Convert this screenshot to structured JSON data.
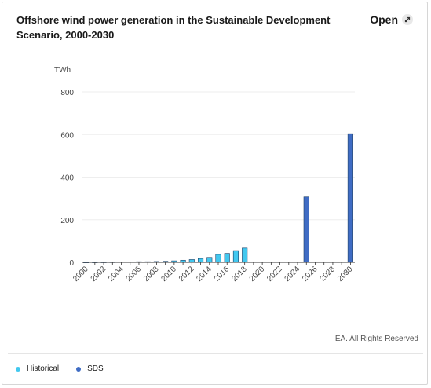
{
  "header": {
    "title": "Offshore wind power generation in the Sustainable Development Scenario, 2000-2030",
    "open_label": "Open"
  },
  "footer": {
    "credit": "IEA. All Rights Reserved"
  },
  "colors": {
    "historical": "#42c8ef",
    "sds": "#3f6cc4",
    "grid": "#eeeeee",
    "axis": "#333333"
  },
  "chart_data": {
    "type": "bar",
    "ylabel": "TWh",
    "ylim": [
      0,
      800
    ],
    "yticks": [
      0,
      200,
      400,
      600,
      800
    ],
    "categories": [
      "2000",
      "2001",
      "2002",
      "2003",
      "2004",
      "2005",
      "2006",
      "2007",
      "2008",
      "2009",
      "2010",
      "2011",
      "2012",
      "2013",
      "2014",
      "2015",
      "2016",
      "2017",
      "2018",
      "2019",
      "2020",
      "2021",
      "2022",
      "2023",
      "2024",
      "2025",
      "2026",
      "2027",
      "2028",
      "2029",
      "2030"
    ],
    "xtick_labels": [
      "2000",
      "2002",
      "2004",
      "2006",
      "2008",
      "2010",
      "2012",
      "2014",
      "2016",
      "2018",
      "2020",
      "2022",
      "2024",
      "2026",
      "2028",
      "2030"
    ],
    "series": [
      {
        "name": "Historical",
        "color": "#42c8ef",
        "values": [
          0.1,
          0.3,
          0.5,
          1,
          2,
          2,
          3,
          3,
          4,
          5,
          7,
          10,
          13,
          18,
          23,
          37,
          42,
          55,
          67,
          null,
          null,
          null,
          null,
          null,
          null,
          null,
          null,
          null,
          null,
          null,
          null
        ]
      },
      {
        "name": "SDS",
        "color": "#3f6cc4",
        "values": [
          null,
          null,
          null,
          null,
          null,
          null,
          null,
          null,
          null,
          null,
          null,
          null,
          null,
          null,
          null,
          null,
          null,
          null,
          null,
          null,
          null,
          null,
          null,
          null,
          null,
          307,
          null,
          null,
          null,
          null,
          604
        ]
      }
    ],
    "grid": true,
    "legend_position": "bottom-left"
  }
}
